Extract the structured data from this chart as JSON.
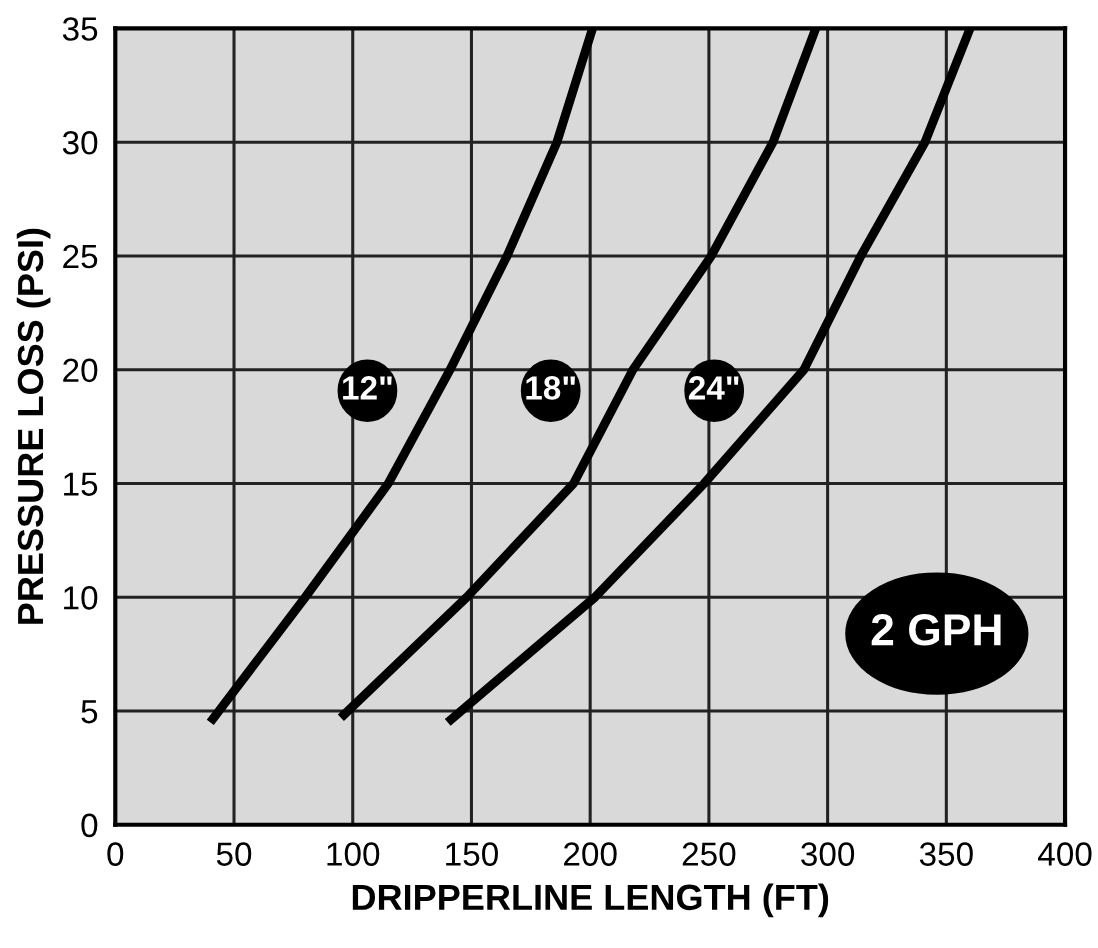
{
  "chart_data": {
    "type": "line",
    "xlabel": "DRIPPERLINE LENGTH (FT)",
    "ylabel": "PRESSURE LOSS (PSI)",
    "xlim": [
      0,
      400
    ],
    "xticks": [
      0,
      50,
      100,
      150,
      200,
      250,
      300,
      350,
      400
    ],
    "ylim": [
      0,
      35
    ],
    "yticks": [
      0,
      5,
      10,
      15,
      20,
      25,
      30,
      35
    ],
    "grid": true,
    "marker": "none",
    "line_style": "solid",
    "series": [
      {
        "name": "12\"",
        "color": "#000000",
        "x": [
          40,
          80,
          115,
          141,
          165,
          186,
          201
        ],
        "values": [
          4.5,
          10,
          15,
          20,
          25,
          30,
          35
        ]
      },
      {
        "name": "18\"",
        "color": "#000000",
        "x": [
          95,
          148,
          193,
          218,
          251,
          277,
          295
        ],
        "values": [
          4.7,
          10,
          15,
          20,
          25,
          30,
          35
        ]
      },
      {
        "name": "24\"",
        "color": "#000000",
        "x": [
          140,
          202,
          248,
          290,
          314,
          341,
          360
        ],
        "values": [
          4.5,
          10,
          15,
          20,
          25,
          30,
          35
        ]
      }
    ],
    "annotations": [
      "2 GPH"
    ]
  }
}
